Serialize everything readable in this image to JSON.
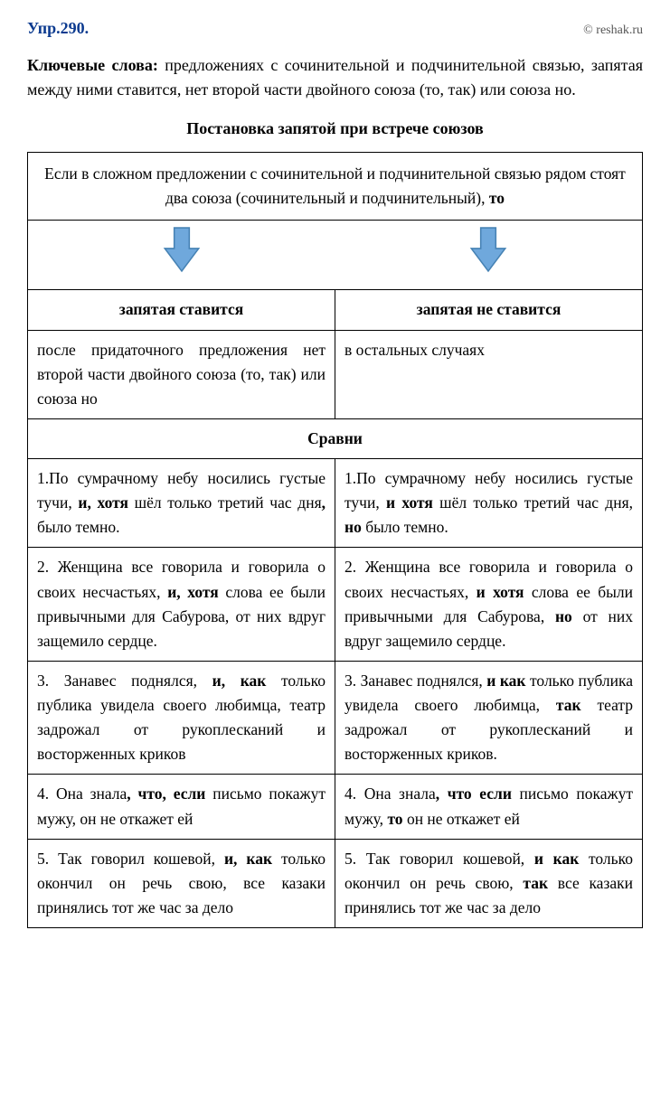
{
  "header": {
    "exercise": "Упр.290.",
    "credit": "© reshak.ru"
  },
  "keywords": {
    "label": "Ключевые слова:",
    "text": " предложениях с сочинительной и подчинительной связью, запятая между ними ставится, нет второй части двойного союза (то, так) или союза но."
  },
  "table": {
    "title": "Постановка запятой при встрече союзов",
    "intro_html": "Если в сложном предложении с сочинительной и подчинительной связью рядом стоят два союза (сочинительный и подчинительный), <b>то</b>",
    "arrow": {
      "fill": "#6fa8dc",
      "stroke": "#4682b4"
    },
    "col_left_header": "запятая ставится",
    "col_right_header": "запятая не ставится",
    "rule_left": "после придаточного предложения нет второй части двойного союза (то, так) или союза но",
    "rule_right": "в остальных случаях",
    "compare_header": "Сравни",
    "rows": [
      {
        "left_html": "1.По сумрачному небу носились густые тучи, <b>и, хотя</b> шёл только третий час дня<b>,</b> было темно.",
        "right_html": "1.По сумрачному небу носились густые тучи, <b>и хотя</b> шёл только третий час дня, <b>но</b> было темно."
      },
      {
        "left_html": "2. Женщина все говорила и говорила о своих несчастьях, <b>и, хотя</b> слова ее были привычными для Сабурова, от них вдруг защемило сердце.",
        "right_html": "2. Женщина все говорила и говорила о своих несчастьях, <b>и хотя</b> слова ее были привычными для Сабурова, <b>но</b> от них вдруг защемило сердце."
      },
      {
        "left_html": "3. Занавес поднялся, <b>и, как</b> только публика увидела своего любимца, театр задрожал от рукоплесканий и восторженных криков",
        "right_html": "3. Занавес поднялся, <b>и как</b> только публика увидела своего любимца, <b>так</b> театр задрожал от рукоплесканий и восторженных криков."
      },
      {
        "left_html": "4. Она знала<b>, что, если</b> письмо покажут мужу, он не откажет ей",
        "right_html": "4. Она знала<b>, что если</b> письмо покажут мужу, <b>то</b> он не откажет ей"
      },
      {
        "left_html": "5. Так говорил кошевой, <b>и, как</b> только окончил он речь свою, все казаки принялись тот же час за дело",
        "right_html": "5. Так говорил кошевой, <b>и как</b> только окончил он речь свою, <b>так</b> все казаки принялись тот же час за дело"
      }
    ]
  },
  "colors": {
    "title_color": "#0b3a8f",
    "credit_color": "#555555",
    "border_color": "#000000",
    "background": "#ffffff"
  }
}
